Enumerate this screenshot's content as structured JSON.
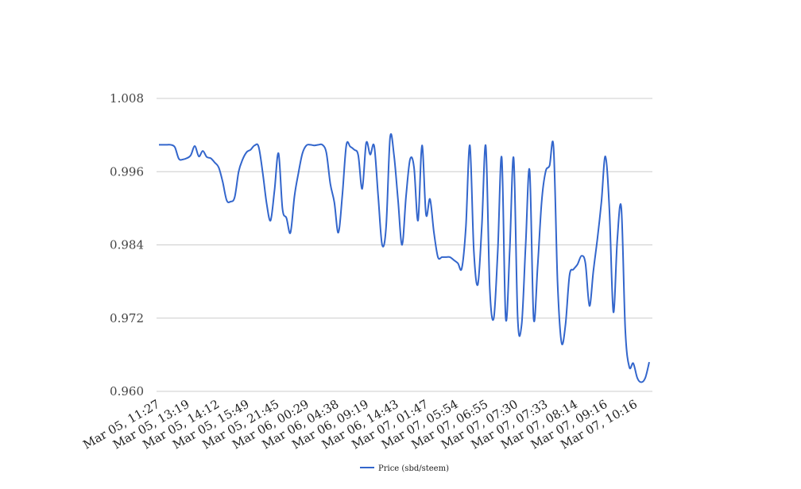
{
  "chart_data": {
    "type": "line",
    "title": "",
    "xlabel": "",
    "ylabel": "",
    "ylim": [
      0.96,
      1.008
    ],
    "yticks": [
      "0.960",
      "0.972",
      "0.984",
      "0.996",
      "1.008"
    ],
    "ytick_values": [
      0.96,
      0.972,
      0.984,
      0.996,
      1.008
    ],
    "grid": true,
    "legend_position": "bottom",
    "x_tick_labels": [
      "Mar 05, 11:27",
      "Mar 05, 13:19",
      "Mar 05, 14:12",
      "Mar 05, 15:49",
      "Mar 05, 21:45",
      "Mar 06, 00:29",
      "Mar 06, 04:38",
      "Mar 06, 09:19",
      "Mar 06, 14:43",
      "Mar 07, 01:47",
      "Mar 07, 05:54",
      "Mar 07, 06:55",
      "Mar 07, 07:30",
      "Mar 07, 07:33",
      "Mar 07, 08:14",
      "Mar 07, 09:16",
      "Mar 07, 10:16"
    ],
    "series": [
      {
        "name": "Price (sbd/steem)",
        "color": "#3366cc",
        "values": [
          1.0004,
          1.0004,
          1.0004,
          1.0004,
          1.0,
          0.9981,
          0.998,
          0.9982,
          0.9987,
          1.0002,
          0.9985,
          0.9994,
          0.9984,
          0.9982,
          0.9975,
          0.9967,
          0.9943,
          0.9913,
          0.9911,
          0.9918,
          0.996,
          0.998,
          0.9992,
          0.9996,
          1.0003,
          1.0001,
          0.996,
          0.9909,
          0.988,
          0.993,
          0.999,
          0.9899,
          0.9884,
          0.986,
          0.992,
          0.9958,
          0.999,
          1.0003,
          1.0004,
          1.0003,
          1.0004,
          1.0004,
          0.9991,
          0.994,
          0.991,
          0.986,
          0.992,
          1.0003,
          1.0001,
          0.9996,
          0.9987,
          0.9932,
          1.0007,
          0.9988,
          1.0002,
          0.992,
          0.984,
          0.987,
          1.0016,
          0.9985,
          0.9912,
          0.984,
          0.992,
          0.998,
          0.9967,
          0.988,
          1.0003,
          0.989,
          0.9915,
          0.986,
          0.982,
          0.982,
          0.982,
          0.982,
          0.9815,
          0.981,
          0.9802,
          0.987,
          1.0003,
          0.983,
          0.9775,
          0.987,
          1.0002,
          0.977,
          0.972,
          0.983,
          0.9983,
          0.972,
          0.983,
          0.9982,
          0.972,
          0.971,
          0.984,
          0.9962,
          0.972,
          0.9803,
          0.991,
          0.996,
          0.997,
          1.0,
          0.978,
          0.968,
          0.971,
          0.979,
          0.98,
          0.9808,
          0.9822,
          0.981,
          0.974,
          0.9798,
          0.985,
          0.991,
          0.9985,
          0.99,
          0.973,
          0.985,
          0.99,
          0.97,
          0.964,
          0.9646,
          0.9622,
          0.9615,
          0.9622,
          0.9648
        ]
      }
    ]
  }
}
